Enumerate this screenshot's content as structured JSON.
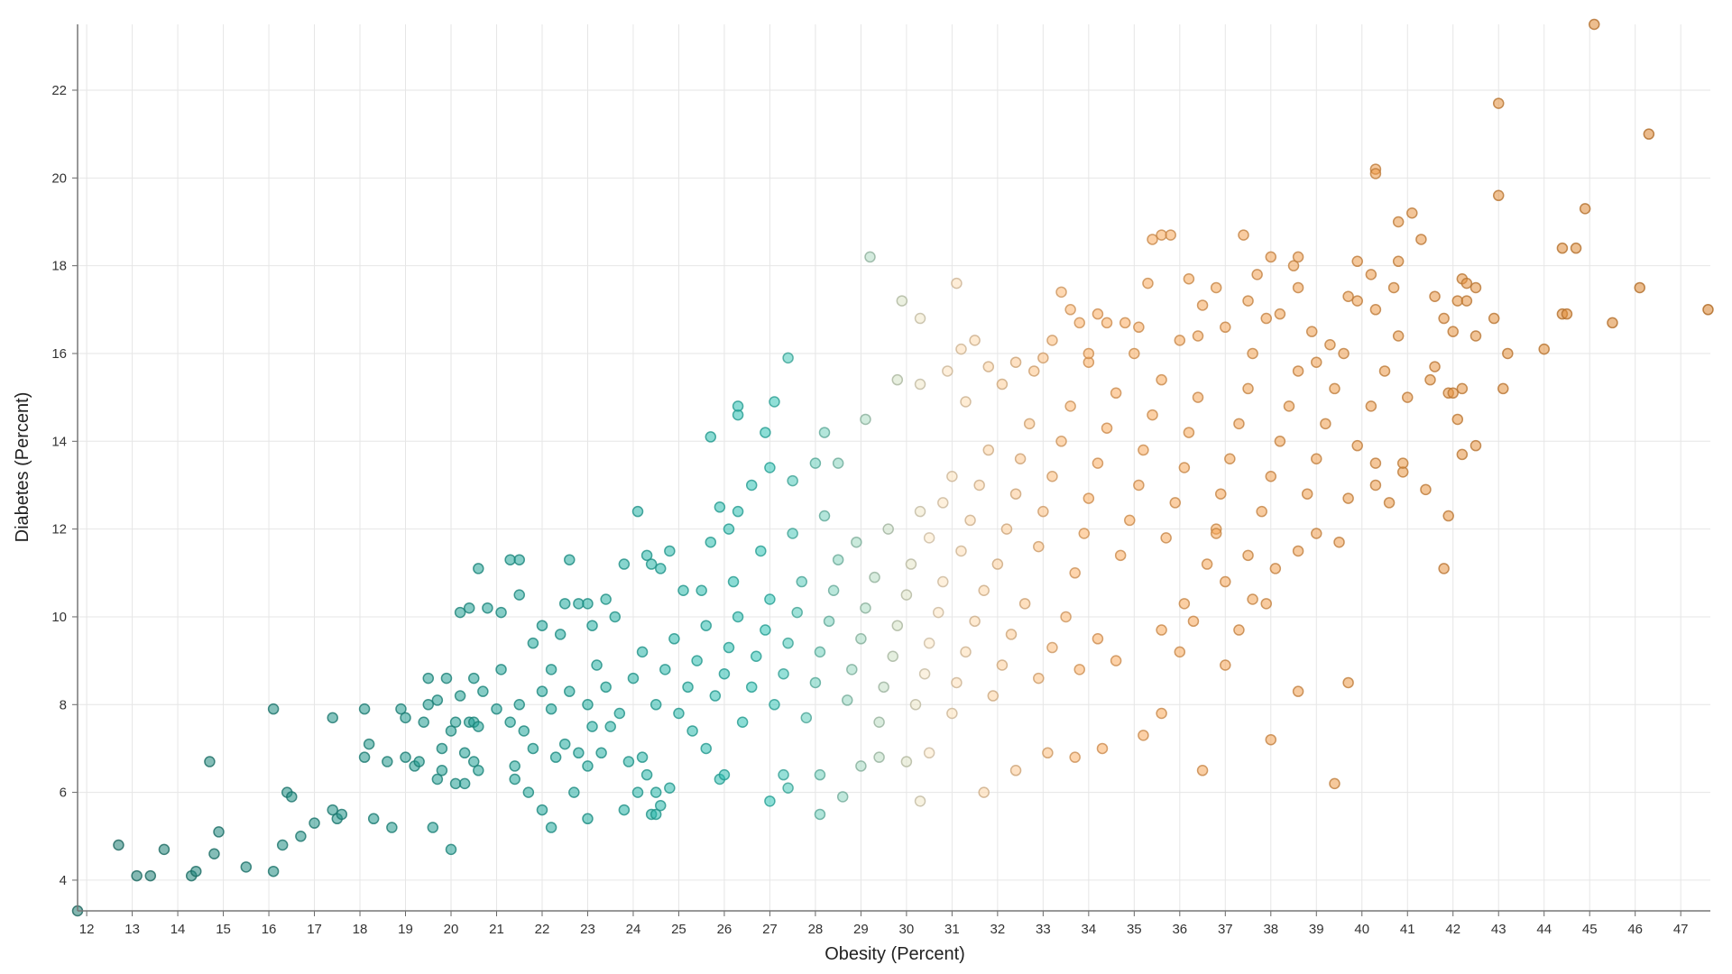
{
  "chart_data": {
    "type": "scatter",
    "title": "",
    "xlabel": "Obesity (Percent)",
    "ylabel": "Diabetes (Percent)",
    "xlim": [
      11.8,
      47.65
    ],
    "ylim": [
      3.3,
      23.5
    ],
    "xticks": [
      12,
      13,
      14,
      15,
      16,
      17,
      18,
      19,
      20,
      21,
      22,
      23,
      24,
      25,
      26,
      27,
      28,
      29,
      30,
      31,
      32,
      33,
      34,
      35,
      36,
      37,
      38,
      39,
      40,
      41,
      42,
      43,
      44,
      45,
      46,
      47
    ],
    "yticks": [
      4,
      6,
      8,
      10,
      12,
      14,
      16,
      18,
      20,
      22
    ],
    "grid": true,
    "legend": "none",
    "color_scale": {
      "by": "x",
      "stops": [
        {
          "x": 12,
          "color": "#1f7a70"
        },
        {
          "x": 22,
          "color": "#20a89c"
        },
        {
          "x": 27,
          "color": "#2ec4b6"
        },
        {
          "x": 30.5,
          "color": "#fde9c9"
        },
        {
          "x": 34,
          "color": "#fdae61"
        },
        {
          "x": 47,
          "color": "#d9822b"
        }
      ]
    },
    "points": [
      [
        11.8,
        3.3
      ],
      [
        12.7,
        4.8
      ],
      [
        13.1,
        4.1
      ],
      [
        13.4,
        4.1
      ],
      [
        13.7,
        4.7
      ],
      [
        14.3,
        4.1
      ],
      [
        14.4,
        4.2
      ],
      [
        14.7,
        6.7
      ],
      [
        14.8,
        4.6
      ],
      [
        14.9,
        5.1
      ],
      [
        15.5,
        4.3
      ],
      [
        16.1,
        4.2
      ],
      [
        16.1,
        7.9
      ],
      [
        16.3,
        4.8
      ],
      [
        16.4,
        6.0
      ],
      [
        16.5,
        5.9
      ],
      [
        16.7,
        5.0
      ],
      [
        17.0,
        5.3
      ],
      [
        17.4,
        7.7
      ],
      [
        17.4,
        5.6
      ],
      [
        17.5,
        5.4
      ],
      [
        17.6,
        5.5
      ],
      [
        18.1,
        7.9
      ],
      [
        18.1,
        6.8
      ],
      [
        18.2,
        7.1
      ],
      [
        18.3,
        5.4
      ],
      [
        18.6,
        6.7
      ],
      [
        18.7,
        5.2
      ],
      [
        18.9,
        7.9
      ],
      [
        19.0,
        7.7
      ],
      [
        19.0,
        6.8
      ],
      [
        19.2,
        6.6
      ],
      [
        19.3,
        6.7
      ],
      [
        19.4,
        7.6
      ],
      [
        19.5,
        8.0
      ],
      [
        19.5,
        8.6
      ],
      [
        19.6,
        5.2
      ],
      [
        19.7,
        8.1
      ],
      [
        19.7,
        6.3
      ],
      [
        19.8,
        7.0
      ],
      [
        19.8,
        6.5
      ],
      [
        19.9,
        8.6
      ],
      [
        20.0,
        4.7
      ],
      [
        20.0,
        7.4
      ],
      [
        20.1,
        6.2
      ],
      [
        20.1,
        7.6
      ],
      [
        20.2,
        8.2
      ],
      [
        20.3,
        6.9
      ],
      [
        20.3,
        6.2
      ],
      [
        20.4,
        7.6
      ],
      [
        20.5,
        7.6
      ],
      [
        20.5,
        8.6
      ],
      [
        20.5,
        6.7
      ],
      [
        20.6,
        6.5
      ],
      [
        20.6,
        7.5
      ],
      [
        20.7,
        8.3
      ],
      [
        21.0,
        7.9
      ],
      [
        21.1,
        8.8
      ],
      [
        21.3,
        7.6
      ],
      [
        21.4,
        6.6
      ],
      [
        21.4,
        6.3
      ],
      [
        21.5,
        8.0
      ],
      [
        21.6,
        7.4
      ],
      [
        21.7,
        6.0
      ],
      [
        21.8,
        7.0
      ],
      [
        22.0,
        5.6
      ],
      [
        22.0,
        8.3
      ],
      [
        22.2,
        7.9
      ],
      [
        22.2,
        5.2
      ],
      [
        22.3,
        6.8
      ],
      [
        22.5,
        7.1
      ],
      [
        22.6,
        8.3
      ],
      [
        22.7,
        6.0
      ],
      [
        22.8,
        6.9
      ],
      [
        23.0,
        5.4
      ],
      [
        23.0,
        6.6
      ],
      [
        23.1,
        7.5
      ],
      [
        23.2,
        8.9
      ],
      [
        23.3,
        6.9
      ],
      [
        23.5,
        7.5
      ],
      [
        23.8,
        5.6
      ],
      [
        23.9,
        6.7
      ],
      [
        24.1,
        6.0
      ],
      [
        24.2,
        6.8
      ],
      [
        24.3,
        6.4
      ],
      [
        24.4,
        5.5
      ],
      [
        24.5,
        5.5
      ],
      [
        24.6,
        5.7
      ],
      [
        24.5,
        6.0
      ],
      [
        24.8,
        6.1
      ],
      [
        25.3,
        7.4
      ],
      [
        25.6,
        7.0
      ],
      [
        25.9,
        6.3
      ],
      [
        26.0,
        6.4
      ],
      [
        27.0,
        5.8
      ],
      [
        27.3,
        6.4
      ],
      [
        27.4,
        6.1
      ],
      [
        28.1,
        5.5
      ],
      [
        28.1,
        6.4
      ],
      [
        28.6,
        5.9
      ],
      [
        29.0,
        6.6
      ],
      [
        29.4,
        6.8
      ],
      [
        30.0,
        6.7
      ],
      [
        30.3,
        5.8
      ],
      [
        30.5,
        6.9
      ],
      [
        31.7,
        6.0
      ],
      [
        32.4,
        6.5
      ],
      [
        33.1,
        6.9
      ],
      [
        33.7,
        6.8
      ],
      [
        34.3,
        7.0
      ],
      [
        35.2,
        7.3
      ],
      [
        35.6,
        7.8
      ],
      [
        36.5,
        6.5
      ],
      [
        38.0,
        7.2
      ],
      [
        39.4,
        6.2
      ],
      [
        38.6,
        8.3
      ],
      [
        39.7,
        8.5
      ],
      [
        20.2,
        10.1
      ],
      [
        20.4,
        10.2
      ],
      [
        20.6,
        11.1
      ],
      [
        20.8,
        10.2
      ],
      [
        21.1,
        10.1
      ],
      [
        21.3,
        11.3
      ],
      [
        21.5,
        11.3
      ],
      [
        21.5,
        10.5
      ],
      [
        21.8,
        9.4
      ],
      [
        22.0,
        9.8
      ],
      [
        22.2,
        8.8
      ],
      [
        22.4,
        9.6
      ],
      [
        22.5,
        10.3
      ],
      [
        22.6,
        11.3
      ],
      [
        22.8,
        10.3
      ],
      [
        23.0,
        10.3
      ],
      [
        23.1,
        9.8
      ],
      [
        23.4,
        10.4
      ],
      [
        23.6,
        10.0
      ],
      [
        23.8,
        11.2
      ],
      [
        24.1,
        12.4
      ],
      [
        24.3,
        11.4
      ],
      [
        24.4,
        11.2
      ],
      [
        24.6,
        11.1
      ],
      [
        24.8,
        11.5
      ],
      [
        25.1,
        10.6
      ],
      [
        25.5,
        10.6
      ],
      [
        25.7,
        11.7
      ],
      [
        25.9,
        12.5
      ],
      [
        26.1,
        12.0
      ],
      [
        26.3,
        12.4
      ],
      [
        26.6,
        13.0
      ],
      [
        26.2,
        10.8
      ],
      [
        23.0,
        8.0
      ],
      [
        23.4,
        8.4
      ],
      [
        23.7,
        7.8
      ],
      [
        24.0,
        8.6
      ],
      [
        24.2,
        9.2
      ],
      [
        24.5,
        8.0
      ],
      [
        24.7,
        8.8
      ],
      [
        24.9,
        9.5
      ],
      [
        25.0,
        7.8
      ],
      [
        25.2,
        8.4
      ],
      [
        25.4,
        9.0
      ],
      [
        25.6,
        9.8
      ],
      [
        25.8,
        8.2
      ],
      [
        26.0,
        8.7
      ],
      [
        26.1,
        9.3
      ],
      [
        26.3,
        10.0
      ],
      [
        26.4,
        7.6
      ],
      [
        26.6,
        8.4
      ],
      [
        26.7,
        9.1
      ],
      [
        26.9,
        9.7
      ],
      [
        27.0,
        10.4
      ],
      [
        27.1,
        8.0
      ],
      [
        27.3,
        8.7
      ],
      [
        27.4,
        9.4
      ],
      [
        27.6,
        10.1
      ],
      [
        27.7,
        10.8
      ],
      [
        27.8,
        7.7
      ],
      [
        28.0,
        8.5
      ],
      [
        28.1,
        9.2
      ],
      [
        28.3,
        9.9
      ],
      [
        28.4,
        10.6
      ],
      [
        28.5,
        11.3
      ],
      [
        28.7,
        8.1
      ],
      [
        28.8,
        8.8
      ],
      [
        29.0,
        9.5
      ],
      [
        29.1,
        10.2
      ],
      [
        29.3,
        10.9
      ],
      [
        29.4,
        7.6
      ],
      [
        29.5,
        8.4
      ],
      [
        29.7,
        9.1
      ],
      [
        29.8,
        9.8
      ],
      [
        30.0,
        10.5
      ],
      [
        30.1,
        11.2
      ],
      [
        30.2,
        8.0
      ],
      [
        30.4,
        8.7
      ],
      [
        30.5,
        9.4
      ],
      [
        30.7,
        10.1
      ],
      [
        30.8,
        10.8
      ],
      [
        31.0,
        7.8
      ],
      [
        31.1,
        8.5
      ],
      [
        31.3,
        9.2
      ],
      [
        31.5,
        9.9
      ],
      [
        31.7,
        10.6
      ],
      [
        31.9,
        8.2
      ],
      [
        32.1,
        8.9
      ],
      [
        32.3,
        9.6
      ],
      [
        32.6,
        10.3
      ],
      [
        32.9,
        8.6
      ],
      [
        33.2,
        9.3
      ],
      [
        33.5,
        10.0
      ],
      [
        33.8,
        8.8
      ],
      [
        34.2,
        9.5
      ],
      [
        34.6,
        9.0
      ],
      [
        26.8,
        11.5
      ],
      [
        27.5,
        11.9
      ],
      [
        28.2,
        12.3
      ],
      [
        28.9,
        11.7
      ],
      [
        29.6,
        12.0
      ],
      [
        30.3,
        12.4
      ],
      [
        30.5,
        11.8
      ],
      [
        30.8,
        12.6
      ],
      [
        31.0,
        13.2
      ],
      [
        31.2,
        11.5
      ],
      [
        31.4,
        12.2
      ],
      [
        31.6,
        13.0
      ],
      [
        31.8,
        13.8
      ],
      [
        32.0,
        11.2
      ],
      [
        32.2,
        12.0
      ],
      [
        32.4,
        12.8
      ],
      [
        32.5,
        13.6
      ],
      [
        32.7,
        14.4
      ],
      [
        32.9,
        11.6
      ],
      [
        33.0,
        12.4
      ],
      [
        33.2,
        13.2
      ],
      [
        33.4,
        14.0
      ],
      [
        33.6,
        14.8
      ],
      [
        33.7,
        11.0
      ],
      [
        33.9,
        11.9
      ],
      [
        34.0,
        12.7
      ],
      [
        34.2,
        13.5
      ],
      [
        34.4,
        14.3
      ],
      [
        34.6,
        15.1
      ],
      [
        34.7,
        11.4
      ],
      [
        34.9,
        12.2
      ],
      [
        35.1,
        13.0
      ],
      [
        35.2,
        13.8
      ],
      [
        35.4,
        14.6
      ],
      [
        35.6,
        15.4
      ],
      [
        35.7,
        11.8
      ],
      [
        35.9,
        12.6
      ],
      [
        36.1,
        13.4
      ],
      [
        36.2,
        14.2
      ],
      [
        36.4,
        15.0
      ],
      [
        36.6,
        11.2
      ],
      [
        36.8,
        12.0
      ],
      [
        36.9,
        12.8
      ],
      [
        37.1,
        13.6
      ],
      [
        37.3,
        14.4
      ],
      [
        37.5,
        15.2
      ],
      [
        37.6,
        16.0
      ],
      [
        37.8,
        12.4
      ],
      [
        38.0,
        13.2
      ],
      [
        38.2,
        14.0
      ],
      [
        38.4,
        14.8
      ],
      [
        38.6,
        15.6
      ],
      [
        38.8,
        12.8
      ],
      [
        39.0,
        13.6
      ],
      [
        39.2,
        14.4
      ],
      [
        39.4,
        15.2
      ],
      [
        39.6,
        16.0
      ],
      [
        39.9,
        13.9
      ],
      [
        40.2,
        14.8
      ],
      [
        40.5,
        15.6
      ],
      [
        40.8,
        16.4
      ],
      [
        41.0,
        15.0
      ],
      [
        31.3,
        14.9
      ],
      [
        32.1,
        15.3
      ],
      [
        33.0,
        15.9
      ],
      [
        34.0,
        15.8
      ],
      [
        35.0,
        16.0
      ],
      [
        36.0,
        16.3
      ],
      [
        37.0,
        16.6
      ],
      [
        38.2,
        16.9
      ],
      [
        39.0,
        15.8
      ],
      [
        25.7,
        14.1
      ],
      [
        26.3,
        14.6
      ],
      [
        26.3,
        14.8
      ],
      [
        26.9,
        14.2
      ],
      [
        27.1,
        14.9
      ],
      [
        27.4,
        15.9
      ],
      [
        27.0,
        13.4
      ],
      [
        27.5,
        13.1
      ],
      [
        28.0,
        13.5
      ],
      [
        28.2,
        14.2
      ],
      [
        28.5,
        13.5
      ],
      [
        29.1,
        14.5
      ],
      [
        29.2,
        18.2
      ],
      [
        29.9,
        17.2
      ],
      [
        29.8,
        15.4
      ],
      [
        30.3,
        16.8
      ],
      [
        30.3,
        15.3
      ],
      [
        30.9,
        15.6
      ],
      [
        31.1,
        17.6
      ],
      [
        31.2,
        16.1
      ],
      [
        31.5,
        16.3
      ],
      [
        31.8,
        15.7
      ],
      [
        32.4,
        15.8
      ],
      [
        32.8,
        15.6
      ],
      [
        33.2,
        16.3
      ],
      [
        33.4,
        17.4
      ],
      [
        33.6,
        17.0
      ],
      [
        33.8,
        16.7
      ],
      [
        34.0,
        16.0
      ],
      [
        34.2,
        16.9
      ],
      [
        34.4,
        16.7
      ],
      [
        34.8,
        16.7
      ],
      [
        35.1,
        16.6
      ],
      [
        35.3,
        17.6
      ],
      [
        35.4,
        18.6
      ],
      [
        35.6,
        18.7
      ],
      [
        35.8,
        18.7
      ],
      [
        36.2,
        17.7
      ],
      [
        36.5,
        17.1
      ],
      [
        36.4,
        16.4
      ],
      [
        36.8,
        17.5
      ],
      [
        37.4,
        18.7
      ],
      [
        37.5,
        17.2
      ],
      [
        37.7,
        17.8
      ],
      [
        37.9,
        16.8
      ],
      [
        38.0,
        18.2
      ],
      [
        38.5,
        18.0
      ],
      [
        38.6,
        18.2
      ],
      [
        38.6,
        17.5
      ],
      [
        38.9,
        16.5
      ],
      [
        39.3,
        16.2
      ],
      [
        39.7,
        17.3
      ],
      [
        39.9,
        17.2
      ],
      [
        39.9,
        18.1
      ],
      [
        40.2,
        17.8
      ],
      [
        40.3,
        20.2
      ],
      [
        40.3,
        20.1
      ],
      [
        40.3,
        17.0
      ],
      [
        40.7,
        17.5
      ],
      [
        40.8,
        18.1
      ],
      [
        40.8,
        19.0
      ],
      [
        41.1,
        19.2
      ],
      [
        41.3,
        18.6
      ],
      [
        41.6,
        17.3
      ],
      [
        41.8,
        16.8
      ],
      [
        42.0,
        16.5
      ],
      [
        42.1,
        17.2
      ],
      [
        42.2,
        17.7
      ],
      [
        42.3,
        17.6
      ],
      [
        42.3,
        17.2
      ],
      [
        42.5,
        17.5
      ],
      [
        42.5,
        16.4
      ],
      [
        42.9,
        16.8
      ],
      [
        43.0,
        21.7
      ],
      [
        43.0,
        19.6
      ],
      [
        43.2,
        16.0
      ],
      [
        43.1,
        15.2
      ],
      [
        42.2,
        15.2
      ],
      [
        42.1,
        14.5
      ],
      [
        42.2,
        13.7
      ],
      [
        42.5,
        13.9
      ],
      [
        41.9,
        15.1
      ],
      [
        42.0,
        15.1
      ],
      [
        41.6,
        15.7
      ],
      [
        41.5,
        15.4
      ],
      [
        41.4,
        12.9
      ],
      [
        41.9,
        12.3
      ],
      [
        41.8,
        11.1
      ],
      [
        44.0,
        16.1
      ],
      [
        44.4,
        16.9
      ],
      [
        44.4,
        18.4
      ],
      [
        44.7,
        18.4
      ],
      [
        44.9,
        19.3
      ],
      [
        44.5,
        16.9
      ],
      [
        45.1,
        23.5
      ],
      [
        45.5,
        16.7
      ],
      [
        46.1,
        17.5
      ],
      [
        46.3,
        21.0
      ],
      [
        47.6,
        17.0
      ],
      [
        40.3,
        13.5
      ],
      [
        40.3,
        13.0
      ],
      [
        40.6,
        12.6
      ],
      [
        40.9,
        13.3
      ],
      [
        40.9,
        13.5
      ],
      [
        39.7,
        12.7
      ],
      [
        39.5,
        11.7
      ],
      [
        39.0,
        11.9
      ],
      [
        38.6,
        11.5
      ],
      [
        38.1,
        11.1
      ],
      [
        37.5,
        11.4
      ],
      [
        37.0,
        10.8
      ],
      [
        36.8,
        11.9
      ],
      [
        37.9,
        10.3
      ],
      [
        37.6,
        10.4
      ],
      [
        37.3,
        9.7
      ],
      [
        37.0,
        8.9
      ],
      [
        36.3,
        9.9
      ],
      [
        36.0,
        9.2
      ],
      [
        36.1,
        10.3
      ],
      [
        35.6,
        9.7
      ]
    ]
  }
}
